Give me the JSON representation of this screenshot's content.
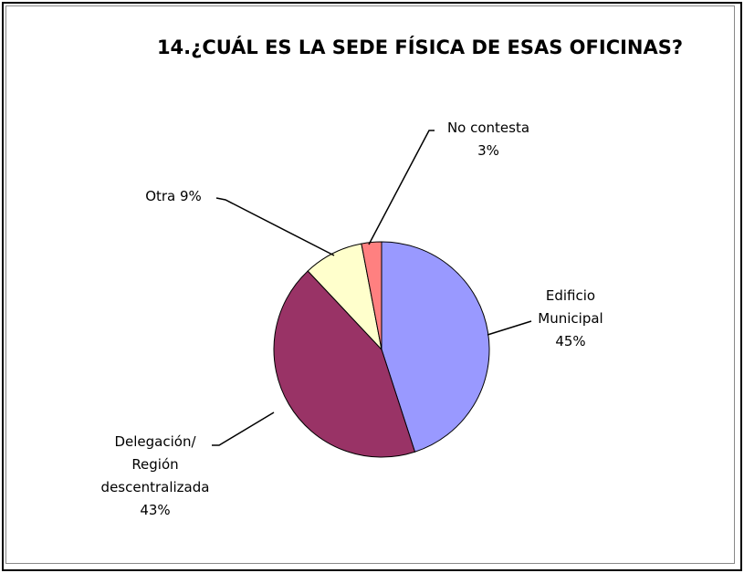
{
  "chart_data": {
    "type": "pie",
    "title": "14.¿CUÁL ES LA SEDE FÍSICA DE ESAS OFICINAS?",
    "categories": [
      "Edificio Municipal",
      "Delegación/ Región descentralizada",
      "Otra",
      "No contesta"
    ],
    "values": [
      45,
      43,
      9,
      3
    ],
    "value_labels": [
      "45%",
      "43%",
      "9%",
      "3%"
    ],
    "colors": [
      "#9999ff",
      "#993366",
      "#ffffcc",
      "#ff8080"
    ]
  }
}
